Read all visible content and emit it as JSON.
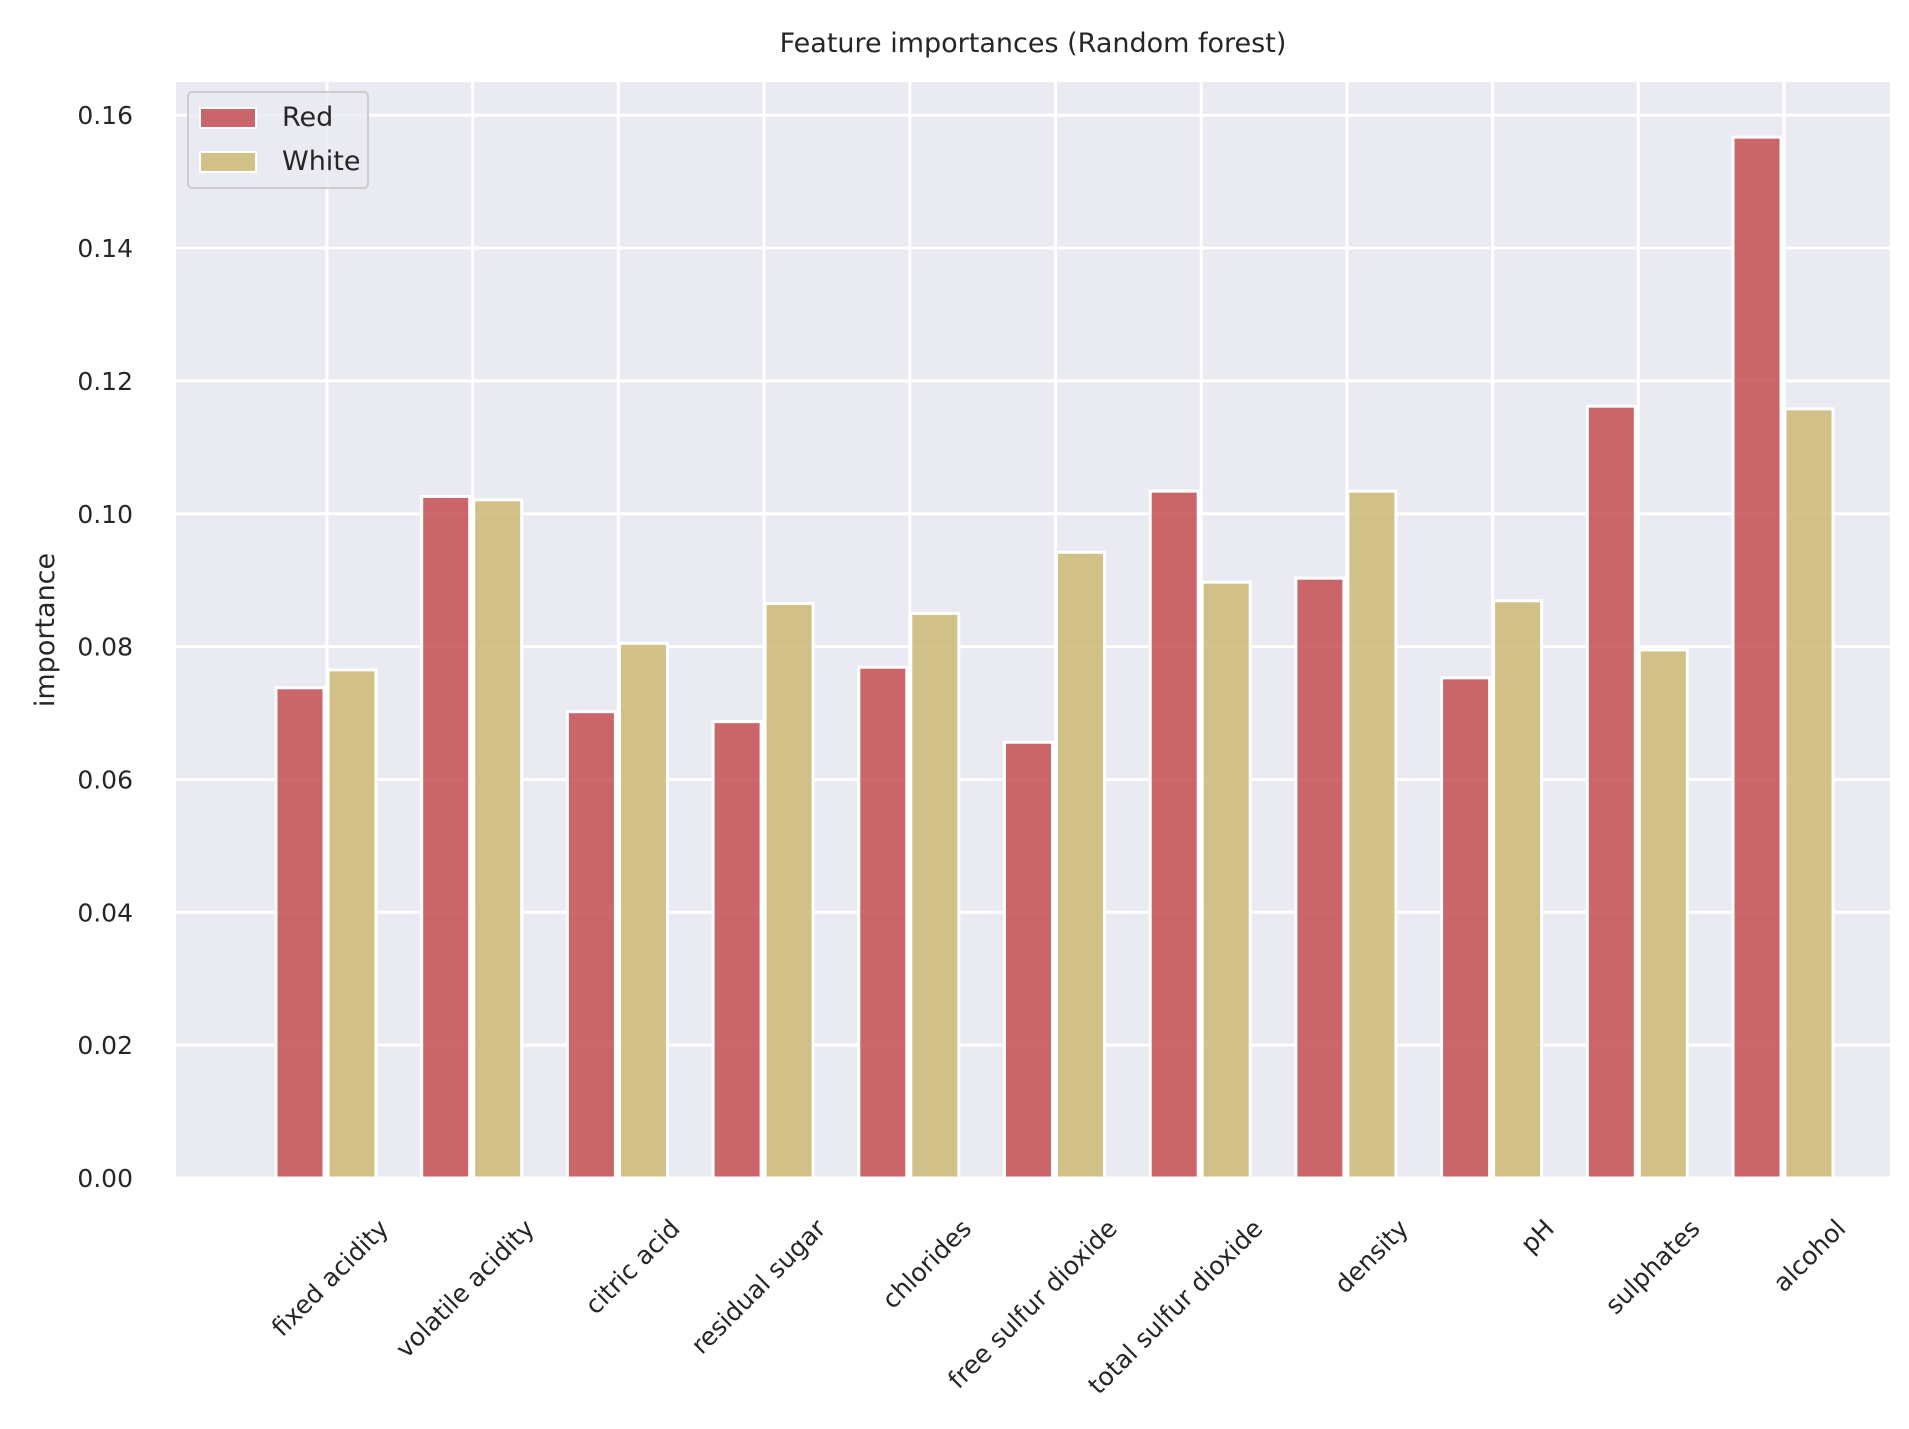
{
  "chart_data": {
    "type": "bar",
    "title": "Feature importances (Random forest)",
    "xlabel": "",
    "ylabel": "importance",
    "categories": [
      "fixed acidity",
      "volatile acidity",
      "citric acid",
      "residual sugar",
      "chlorides",
      "free sulfur dioxide",
      "total sulfur dioxide",
      "density",
      "pH",
      "sulphates",
      "alcohol"
    ],
    "series": [
      {
        "name": "Red",
        "color": "#c44e52",
        "values": [
          0.0738,
          0.1026,
          0.0702,
          0.0687,
          0.0769,
          0.0656,
          0.1034,
          0.0903,
          0.0753,
          0.1162,
          0.1567
        ]
      },
      {
        "name": "White",
        "color": "#ccb974",
        "values": [
          0.0765,
          0.1021,
          0.0805,
          0.0865,
          0.085,
          0.0942,
          0.0897,
          0.1034,
          0.0869,
          0.0795,
          0.1158
        ]
      }
    ],
    "ylim": [
      0,
      0.165
    ],
    "yticks": [
      "0.00",
      "0.02",
      "0.04",
      "0.06",
      "0.08",
      "0.10",
      "0.12",
      "0.14",
      "0.16"
    ],
    "background_color": "#eaeaf2",
    "grid": true,
    "legend_position": "top-left"
  }
}
